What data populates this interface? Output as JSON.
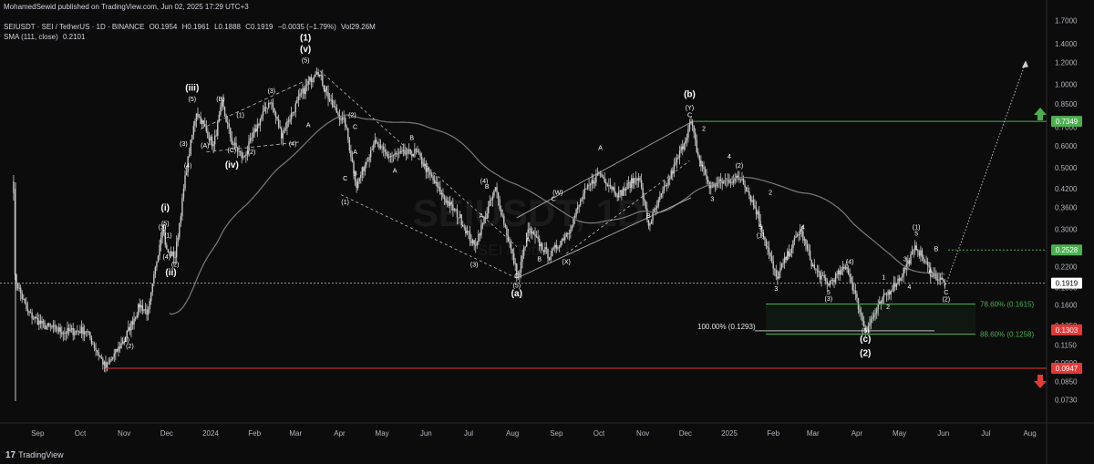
{
  "header": {
    "publisher": "MohamedSewid published on TradingView.com, Jun 02, 2025 17:29 UTC+3",
    "symbol": "SEIUSDT · SEI / TetherUS · 1D · BINANCE",
    "open": "O0.1954",
    "high": "H0.1961",
    "low": "L0.1888",
    "close": "C0.1919",
    "change": "−0.0035 (−1.79%)",
    "volume": "Vol29.26M",
    "indicator_name": "SMA (111, close)",
    "indicator_value": "0.2101"
  },
  "watermark": {
    "title": "SEIUSDT, 1D",
    "subtitle": "SEI / TetherUS"
  },
  "footer": {
    "brand": "TradingView"
  },
  "colors": {
    "background": "#0c0c0c",
    "candle": "#c8c8c8",
    "sma": "#7a7a7a",
    "green": "#4caf50",
    "red": "#e53935",
    "wave_label": "#ffffff"
  },
  "chart_data": {
    "type": "candlestick",
    "y_scale": "log",
    "y_ticks": [
      "1.7000",
      "1.4000",
      "1.2000",
      "1.0000",
      "0.8500",
      "0.7000",
      "0.6000",
      "0.5000",
      "0.4200",
      "0.3600",
      "0.3000",
      "0.2500",
      "0.2200",
      "0.1850",
      "0.1600",
      "0.1350",
      "0.1150",
      "0.0990",
      "0.0850",
      "0.0730"
    ],
    "x_ticks": [
      "Sep",
      "Oct",
      "Nov",
      "Dec",
      "2024",
      "Feb",
      "Mar",
      "Apr",
      "May",
      "Jun",
      "Jul",
      "Aug",
      "Sep",
      "Oct",
      "Nov",
      "Dec",
      "2025",
      "Feb",
      "Mar",
      "Apr",
      "May",
      "Jun",
      "Jul",
      "Aug"
    ],
    "price_path": [
      [
        "2023-08-15",
        0.42
      ],
      [
        "2023-08-16",
        0.2
      ],
      [
        "2023-08-25",
        0.15
      ],
      [
        "2023-09-05",
        0.135
      ],
      [
        "2023-09-20",
        0.128
      ],
      [
        "2023-10-05",
        0.13
      ],
      [
        "2023-10-19",
        0.095
      ],
      [
        "2023-11-01",
        0.12
      ],
      [
        "2023-11-12",
        0.16
      ],
      [
        "2023-11-18",
        0.15
      ],
      [
        "2023-11-28",
        0.31
      ],
      [
        "2023-12-01",
        0.25
      ],
      [
        "2023-12-07",
        0.24
      ],
      [
        "2023-12-15",
        0.5
      ],
      [
        "2023-12-22",
        0.8
      ],
      [
        "2024-01-03",
        0.6
      ],
      [
        "2024-01-09",
        0.85
      ],
      [
        "2024-01-16",
        0.62
      ],
      [
        "2024-01-24",
        0.54
      ],
      [
        "2024-02-05",
        0.75
      ],
      [
        "2024-02-12",
        0.88
      ],
      [
        "2024-02-20",
        0.66
      ],
      [
        "2024-03-04",
        0.9
      ],
      [
        "2024-03-16",
        1.14
      ],
      [
        "2024-03-26",
        0.85
      ],
      [
        "2024-04-05",
        0.72
      ],
      [
        "2024-04-13",
        0.43
      ],
      [
        "2024-04-25",
        0.62
      ],
      [
        "2024-05-05",
        0.55
      ],
      [
        "2024-05-25",
        0.57
      ],
      [
        "2024-06-12",
        0.4
      ],
      [
        "2024-06-25",
        0.33
      ],
      [
        "2024-07-05",
        0.26
      ],
      [
        "2024-07-20",
        0.42
      ],
      [
        "2024-08-05",
        0.2
      ],
      [
        "2024-08-12",
        0.3
      ],
      [
        "2024-08-27",
        0.24
      ],
      [
        "2024-09-10",
        0.3
      ],
      [
        "2024-09-20",
        0.4
      ],
      [
        "2024-10-01",
        0.48
      ],
      [
        "2024-10-15",
        0.4
      ],
      [
        "2024-10-29",
        0.47
      ],
      [
        "2024-11-05",
        0.31
      ],
      [
        "2024-11-25",
        0.53
      ],
      [
        "2024-12-05",
        0.73
      ],
      [
        "2024-12-10",
        0.55
      ],
      [
        "2024-12-18",
        0.43
      ],
      [
        "2024-12-30",
        0.45
      ],
      [
        "2025-01-10",
        0.46
      ],
      [
        "2025-01-21",
        0.34
      ],
      [
        "2025-02-03",
        0.2
      ],
      [
        "2025-02-20",
        0.3
      ],
      [
        "2025-03-01",
        0.22
      ],
      [
        "2025-03-11",
        0.19
      ],
      [
        "2025-03-25",
        0.22
      ],
      [
        "2025-04-07",
        0.13
      ],
      [
        "2025-04-20",
        0.17
      ],
      [
        "2025-05-01",
        0.2
      ],
      [
        "2025-05-13",
        0.26
      ],
      [
        "2025-05-23",
        0.21
      ],
      [
        "2025-06-02",
        0.1919
      ]
    ],
    "sma_length": 111,
    "horizontal_levels": [
      {
        "label": "0.7349",
        "value": 0.7349,
        "color": "green"
      },
      {
        "label": "0.2528",
        "value": 0.2528,
        "color": "green"
      },
      {
        "label": "0.1919",
        "value": 0.1919,
        "color": "white"
      },
      {
        "label": "0.1303",
        "value": 0.1303,
        "color": "red"
      },
      {
        "label": "0.0947",
        "value": 0.0947,
        "color": "red"
      }
    ],
    "fib_levels": [
      {
        "label": "78.60% (0.1615)",
        "value": 0.1615
      },
      {
        "label": "100.00% (0.1293)",
        "value": 0.1293
      },
      {
        "label": "88.60% (0.1258)",
        "value": 0.1258
      }
    ],
    "wave_labels": [
      {
        "t": "(1)",
        "d": "2023-11-02",
        "p": 0.118
      },
      {
        "t": "(2)",
        "d": "2023-11-05",
        "p": 0.112
      },
      {
        "t": "(3)",
        "d": "2023-11-28",
        "p": 0.3
      },
      {
        "t": "(4)",
        "d": "2023-12-01",
        "p": 0.235
      },
      {
        "t": "(5)",
        "d": "2023-11-30",
        "p": 0.31
      },
      {
        "t": "(1)",
        "d": "2023-12-02",
        "p": 0.28
      },
      {
        "t": "(2)",
        "d": "2023-12-07",
        "p": 0.22
      },
      {
        "t": "(i)",
        "d": "2023-11-30",
        "p": 0.35
      },
      {
        "t": "(ii)",
        "d": "2023-12-04",
        "p": 0.205
      },
      {
        "t": "(3)",
        "d": "2023-12-13",
        "p": 0.6
      },
      {
        "t": "(4)",
        "d": "2023-12-16",
        "p": 0.5
      },
      {
        "t": "(5)",
        "d": "2023-12-19",
        "p": 0.87
      },
      {
        "t": "(iii)",
        "d": "2023-12-19",
        "p": 0.95
      },
      {
        "t": "(A)",
        "d": "2023-12-28",
        "p": 0.59
      },
      {
        "t": "(B)",
        "d": "2024-01-08",
        "p": 0.87
      },
      {
        "t": "(C)",
        "d": "2024-01-16",
        "p": 0.57
      },
      {
        "t": "(iv)",
        "d": "2024-01-16",
        "p": 0.5
      },
      {
        "t": "(1)",
        "d": "2024-01-22",
        "p": 0.76
      },
      {
        "t": "(2)",
        "d": "2024-01-30",
        "p": 0.56
      },
      {
        "t": "(3)",
        "d": "2024-02-13",
        "p": 0.93
      },
      {
        "t": "(4)",
        "d": "2024-02-28",
        "p": 0.6
      },
      {
        "t": "(5)",
        "d": "2024-03-08",
        "p": 1.2
      },
      {
        "t": "(v)",
        "d": "2024-03-08",
        "p": 1.31
      },
      {
        "t": "(1)",
        "d": "2024-03-08",
        "p": 1.44
      },
      {
        "t": "A",
        "d": "2024-03-10",
        "p": 0.7
      },
      {
        "t": "B",
        "d": "2024-03-22",
        "p": 0.95
      },
      {
        "t": "C",
        "d": "2024-04-05",
        "p": 0.45
      },
      {
        "t": "(1)",
        "d": "2024-04-05",
        "p": 0.37
      },
      {
        "t": "(2)",
        "d": "2024-04-10",
        "p": 0.76
      },
      {
        "t": "A",
        "d": "2024-04-12",
        "p": 0.56
      },
      {
        "t": "B",
        "d": "2024-04-12",
        "p": 0.47
      },
      {
        "t": "C",
        "d": "2024-04-12",
        "p": 0.69
      },
      {
        "t": "A",
        "d": "2024-05-10",
        "p": 0.48
      },
      {
        "t": "B",
        "d": "2024-05-22",
        "p": 0.63
      },
      {
        "t": "(3)",
        "d": "2024-07-05",
        "p": 0.22
      },
      {
        "t": "(4)",
        "d": "2024-07-12",
        "p": 0.44
      },
      {
        "t": "A",
        "d": "2024-07-10",
        "p": 0.33
      },
      {
        "t": "B",
        "d": "2024-07-14",
        "p": 0.42
      },
      {
        "t": "C",
        "d": "2024-08-04",
        "p": 0.2
      },
      {
        "t": "(5)",
        "d": "2024-08-04",
        "p": 0.185
      },
      {
        "t": "(a)",
        "d": "2024-08-04",
        "p": 0.172
      },
      {
        "t": "A",
        "d": "2024-08-12",
        "p": 0.27
      },
      {
        "t": "B",
        "d": "2024-08-20",
        "p": 0.23
      },
      {
        "t": "(W)",
        "d": "2024-09-02",
        "p": 0.4
      },
      {
        "t": "C",
        "d": "2024-08-30",
        "p": 0.38
      },
      {
        "t": "(X)",
        "d": "2024-09-08",
        "p": 0.225
      },
      {
        "t": "A",
        "d": "2024-10-02",
        "p": 0.58
      },
      {
        "t": "B",
        "d": "2024-11-05",
        "p": 0.33
      },
      {
        "t": "C",
        "d": "2024-12-04",
        "p": 0.76
      },
      {
        "t": "(Y)",
        "d": "2024-12-04",
        "p": 0.81
      },
      {
        "t": "(b)",
        "d": "2024-12-04",
        "p": 0.9
      },
      {
        "t": "1",
        "d": "2024-12-12",
        "p": 0.51
      },
      {
        "t": "2",
        "d": "2024-12-14",
        "p": 0.68
      },
      {
        "t": "3",
        "d": "2024-12-20",
        "p": 0.38
      },
      {
        "t": "4",
        "d": "2025-01-01",
        "p": 0.54
      },
      {
        "t": "(2)",
        "d": "2025-01-08",
        "p": 0.5
      },
      {
        "t": "5",
        "d": "2025-01-23",
        "p": 0.3
      },
      {
        "t": "(1)",
        "d": "2025-01-23",
        "p": 0.28
      },
      {
        "t": "2",
        "d": "2025-01-30",
        "p": 0.4
      },
      {
        "t": "3",
        "d": "2025-02-03",
        "p": 0.18
      },
      {
        "t": "4",
        "d": "2025-02-22",
        "p": 0.3
      },
      {
        "t": "5",
        "d": "2025-03-12",
        "p": 0.175
      },
      {
        "t": "(3)",
        "d": "2025-03-12",
        "p": 0.166
      },
      {
        "t": "(4)",
        "d": "2025-03-27",
        "p": 0.225
      },
      {
        "t": "(5)",
        "d": "2025-04-07",
        "p": 0.127
      },
      {
        "t": "(c)",
        "d": "2025-04-07",
        "p": 0.118
      },
      {
        "t": "(2)",
        "d": "2025-04-07",
        "p": 0.105
      },
      {
        "t": "1",
        "d": "2025-04-20",
        "p": 0.198
      },
      {
        "t": "2",
        "d": "2025-04-23",
        "p": 0.155
      },
      {
        "t": "3",
        "d": "2025-05-05",
        "p": 0.23
      },
      {
        "t": "4",
        "d": "2025-05-08",
        "p": 0.183
      },
      {
        "t": "5",
        "d": "2025-05-13",
        "p": 0.285
      },
      {
        "t": "(1)",
        "d": "2025-05-13",
        "p": 0.3
      },
      {
        "t": "A",
        "d": "2025-05-23",
        "p": 0.208
      },
      {
        "t": "B",
        "d": "2025-05-27",
        "p": 0.25
      },
      {
        "t": "C",
        "d": "2025-06-03",
        "p": 0.175
      },
      {
        "t": "(2)",
        "d": "2025-06-03",
        "p": 0.165
      }
    ]
  }
}
